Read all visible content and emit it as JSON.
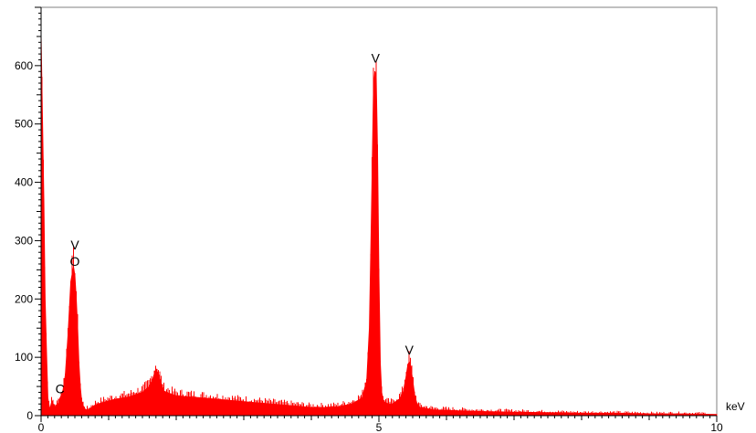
{
  "chart_data": {
    "type": "area",
    "title": "",
    "xlabel": "",
    "ylabel": "",
    "x_unit": "keV",
    "xlim": [
      0,
      10
    ],
    "ylim": [
      0,
      700
    ],
    "x_ticks": [
      0,
      5,
      10
    ],
    "y_ticks": [
      0,
      100,
      200,
      300,
      400,
      500,
      600
    ],
    "grid": false,
    "legend": "none",
    "fill_color": "#ff0000",
    "series": [
      {
        "x": [
          0.0,
          0.02,
          0.04,
          0.06,
          0.08,
          0.1,
          0.13,
          0.16,
          0.2,
          0.25,
          0.28,
          0.32,
          0.36,
          0.4,
          0.44,
          0.48,
          0.5,
          0.52,
          0.54,
          0.56,
          0.58,
          0.6,
          0.63,
          0.66,
          0.7,
          0.8,
          0.9,
          1.0,
          1.1,
          1.2,
          1.3,
          1.4,
          1.5,
          1.6,
          1.65,
          1.7,
          1.74,
          1.78,
          1.82,
          1.86,
          1.9,
          2.0,
          2.2,
          2.4,
          2.6,
          2.8,
          3.0,
          3.2,
          3.4,
          3.6,
          3.8,
          4.0,
          4.2,
          4.4,
          4.6,
          4.75,
          4.82,
          4.86,
          4.89,
          4.92,
          4.94,
          4.96,
          4.98,
          5.0,
          5.02,
          5.04,
          5.06,
          5.08,
          5.1,
          5.15,
          5.2,
          5.3,
          5.36,
          5.4,
          5.43,
          5.45,
          5.47,
          5.5,
          5.53,
          5.56,
          5.6,
          5.7,
          5.8,
          6.0,
          6.5,
          7.0,
          7.5,
          8.0,
          8.5,
          9.0,
          9.5,
          10.0
        ],
        "y": [
          650,
          510,
          370,
          200,
          110,
          30,
          10,
          25,
          15,
          20,
          30,
          40,
          70,
          140,
          230,
          255,
          240,
          200,
          150,
          90,
          50,
          25,
          15,
          10,
          10,
          18,
          22,
          25,
          28,
          30,
          32,
          36,
          40,
          50,
          62,
          80,
          70,
          55,
          42,
          40,
          38,
          34,
          32,
          30,
          28,
          26,
          24,
          22,
          20,
          18,
          16,
          14,
          14,
          15,
          20,
          30,
          60,
          150,
          350,
          560,
          590,
          580,
          450,
          240,
          90,
          40,
          28,
          24,
          22,
          20,
          20,
          28,
          40,
          65,
          88,
          92,
          85,
          60,
          35,
          22,
          14,
          12,
          10,
          9,
          7,
          6,
          5,
          4,
          4,
          3,
          3,
          2
        ]
      }
    ],
    "annotations": [
      {
        "text": "V",
        "x": 0.5,
        "y": 285
      },
      {
        "text": "O",
        "x": 0.5,
        "y": 257
      },
      {
        "text": "C",
        "x": 0.28,
        "y": 38
      },
      {
        "text": "V",
        "x": 4.95,
        "y": 605
      },
      {
        "text": "V",
        "x": 5.45,
        "y": 105
      }
    ]
  }
}
